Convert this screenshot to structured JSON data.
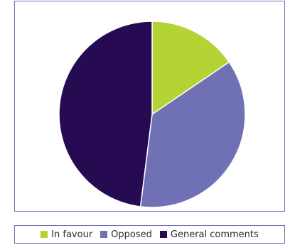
{
  "chart_data": {
    "type": "pie",
    "title": "",
    "slices": [
      {
        "label": "In favour",
        "value": 15.5,
        "color": "#b4d335"
      },
      {
        "label": "Opposed",
        "value": 36.5,
        "color": "#7070b4"
      },
      {
        "label": "General comments",
        "value": 48.0,
        "color": "#260a52"
      }
    ],
    "start_angle_deg": 0,
    "direction": "clockwise",
    "legend_position": "bottom",
    "frame_color": "#7070b4"
  }
}
